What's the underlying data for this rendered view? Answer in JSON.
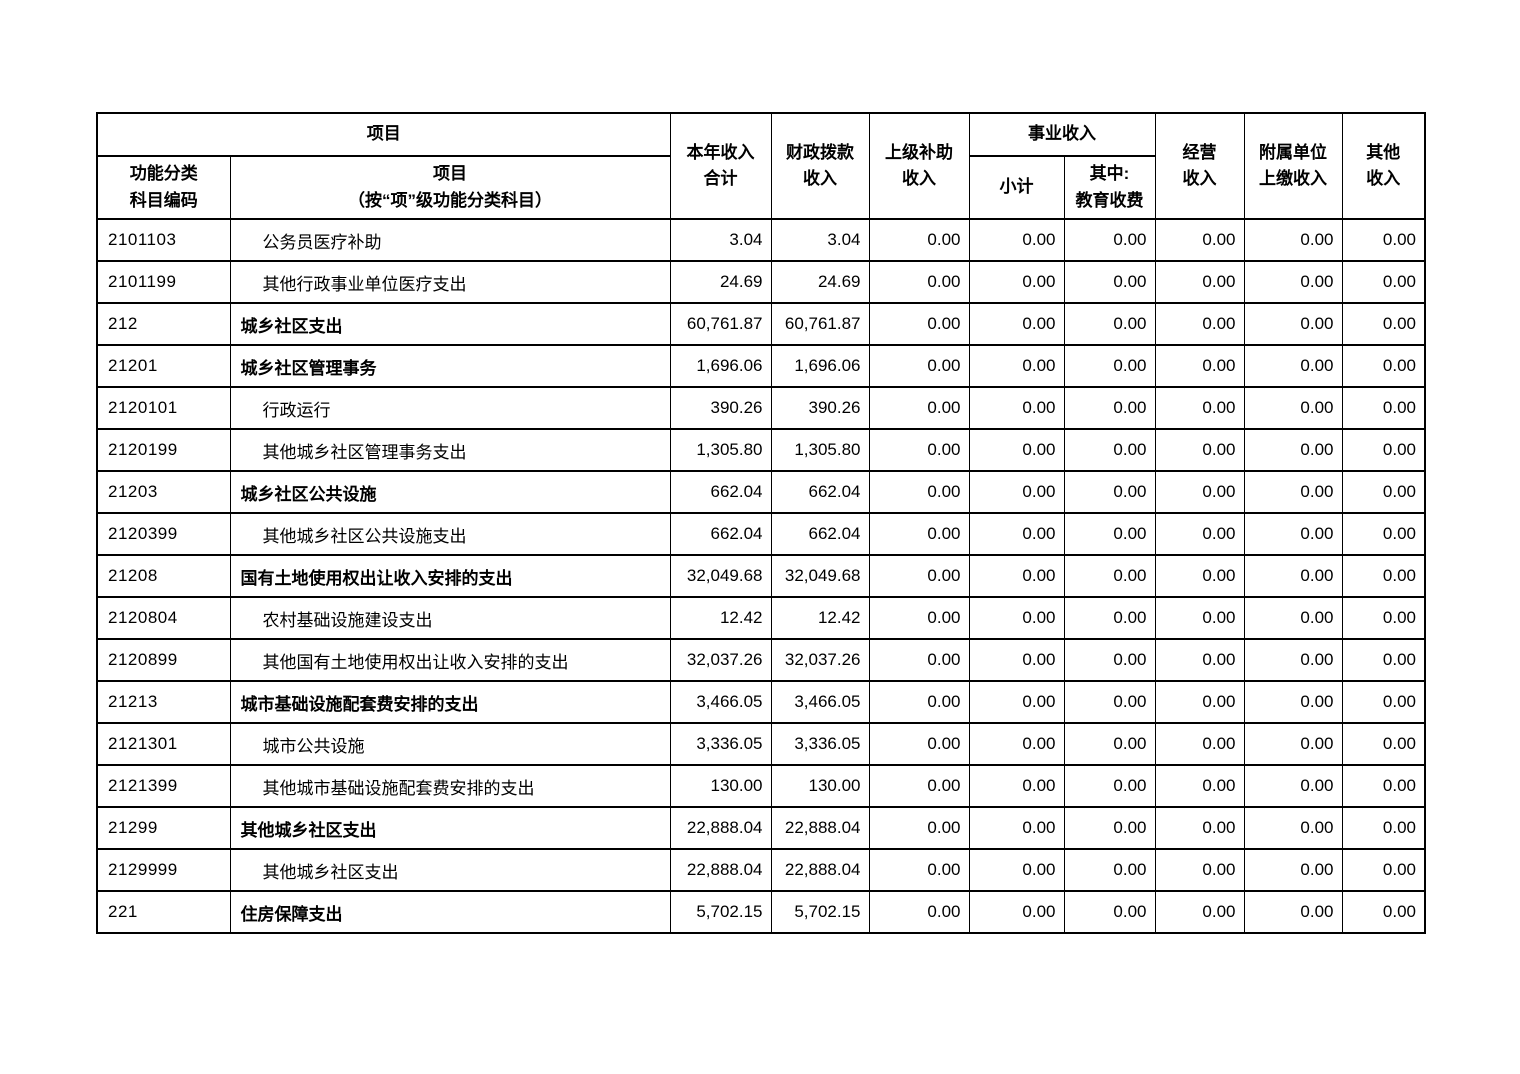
{
  "table": {
    "header": {
      "project_group": "项目",
      "code_label": "功能分类\n科目编码",
      "name_label": "项目\n（按“项”级功能分类科目）",
      "col_total": "本年收入\n合计",
      "col_fiscal": "财政拨款\n收入",
      "col_superior": "上级补助\n收入",
      "col_business_group": "事业收入",
      "col_business_subtotal": "小计",
      "col_business_education": "其中:\n教育收费",
      "col_operating": "经营\n收入",
      "col_affiliated": "附属单位\n上缴收入",
      "col_other": "其他\n收入"
    },
    "rows": [
      {
        "code": "2101103",
        "name": "公务员医疗补助",
        "style": "detail",
        "values": [
          "3.04",
          "3.04",
          "0.00",
          "0.00",
          "0.00",
          "0.00",
          "0.00",
          "0.00"
        ]
      },
      {
        "code": "2101199",
        "name": "其他行政事业单位医疗支出",
        "style": "detail",
        "values": [
          "24.69",
          "24.69",
          "0.00",
          "0.00",
          "0.00",
          "0.00",
          "0.00",
          "0.00"
        ]
      },
      {
        "code": "212",
        "name": "城乡社区支出",
        "style": "summary",
        "values": [
          "60,761.87",
          "60,761.87",
          "0.00",
          "0.00",
          "0.00",
          "0.00",
          "0.00",
          "0.00"
        ]
      },
      {
        "code": "21201",
        "name": "城乡社区管理事务",
        "style": "summary",
        "values": [
          "1,696.06",
          "1,696.06",
          "0.00",
          "0.00",
          "0.00",
          "0.00",
          "0.00",
          "0.00"
        ]
      },
      {
        "code": "2120101",
        "name": "行政运行",
        "style": "detail",
        "values": [
          "390.26",
          "390.26",
          "0.00",
          "0.00",
          "0.00",
          "0.00",
          "0.00",
          "0.00"
        ]
      },
      {
        "code": "2120199",
        "name": "其他城乡社区管理事务支出",
        "style": "detail",
        "values": [
          "1,305.80",
          "1,305.80",
          "0.00",
          "0.00",
          "0.00",
          "0.00",
          "0.00",
          "0.00"
        ]
      },
      {
        "code": "21203",
        "name": "城乡社区公共设施",
        "style": "summary",
        "values": [
          "662.04",
          "662.04",
          "0.00",
          "0.00",
          "0.00",
          "0.00",
          "0.00",
          "0.00"
        ]
      },
      {
        "code": "2120399",
        "name": "其他城乡社区公共设施支出",
        "style": "detail",
        "values": [
          "662.04",
          "662.04",
          "0.00",
          "0.00",
          "0.00",
          "0.00",
          "0.00",
          "0.00"
        ]
      },
      {
        "code": "21208",
        "name": "国有土地使用权出让收入安排的支出",
        "style": "summary",
        "values": [
          "32,049.68",
          "32,049.68",
          "0.00",
          "0.00",
          "0.00",
          "0.00",
          "0.00",
          "0.00"
        ]
      },
      {
        "code": "2120804",
        "name": "农村基础设施建设支出",
        "style": "detail",
        "values": [
          "12.42",
          "12.42",
          "0.00",
          "0.00",
          "0.00",
          "0.00",
          "0.00",
          "0.00"
        ]
      },
      {
        "code": "2120899",
        "name": "其他国有土地使用权出让收入安排的支出",
        "style": "detail",
        "values": [
          "32,037.26",
          "32,037.26",
          "0.00",
          "0.00",
          "0.00",
          "0.00",
          "0.00",
          "0.00"
        ]
      },
      {
        "code": "21213",
        "name": "城市基础设施配套费安排的支出",
        "style": "summary",
        "values": [
          "3,466.05",
          "3,466.05",
          "0.00",
          "0.00",
          "0.00",
          "0.00",
          "0.00",
          "0.00"
        ]
      },
      {
        "code": "2121301",
        "name": "城市公共设施",
        "style": "detail",
        "values": [
          "3,336.05",
          "3,336.05",
          "0.00",
          "0.00",
          "0.00",
          "0.00",
          "0.00",
          "0.00"
        ]
      },
      {
        "code": "2121399",
        "name": "其他城市基础设施配套费安排的支出",
        "style": "detail",
        "values": [
          "130.00",
          "130.00",
          "0.00",
          "0.00",
          "0.00",
          "0.00",
          "0.00",
          "0.00"
        ]
      },
      {
        "code": "21299",
        "name": "其他城乡社区支出",
        "style": "summary",
        "values": [
          "22,888.04",
          "22,888.04",
          "0.00",
          "0.00",
          "0.00",
          "0.00",
          "0.00",
          "0.00"
        ]
      },
      {
        "code": "2129999",
        "name": "其他城乡社区支出",
        "style": "detail",
        "values": [
          "22,888.04",
          "22,888.04",
          "0.00",
          "0.00",
          "0.00",
          "0.00",
          "0.00",
          "0.00"
        ]
      },
      {
        "code": "221",
        "name": "住房保障支出",
        "style": "summary",
        "values": [
          "5,702.15",
          "5,702.15",
          "0.00",
          "0.00",
          "0.00",
          "0.00",
          "0.00",
          "0.00"
        ]
      }
    ]
  }
}
